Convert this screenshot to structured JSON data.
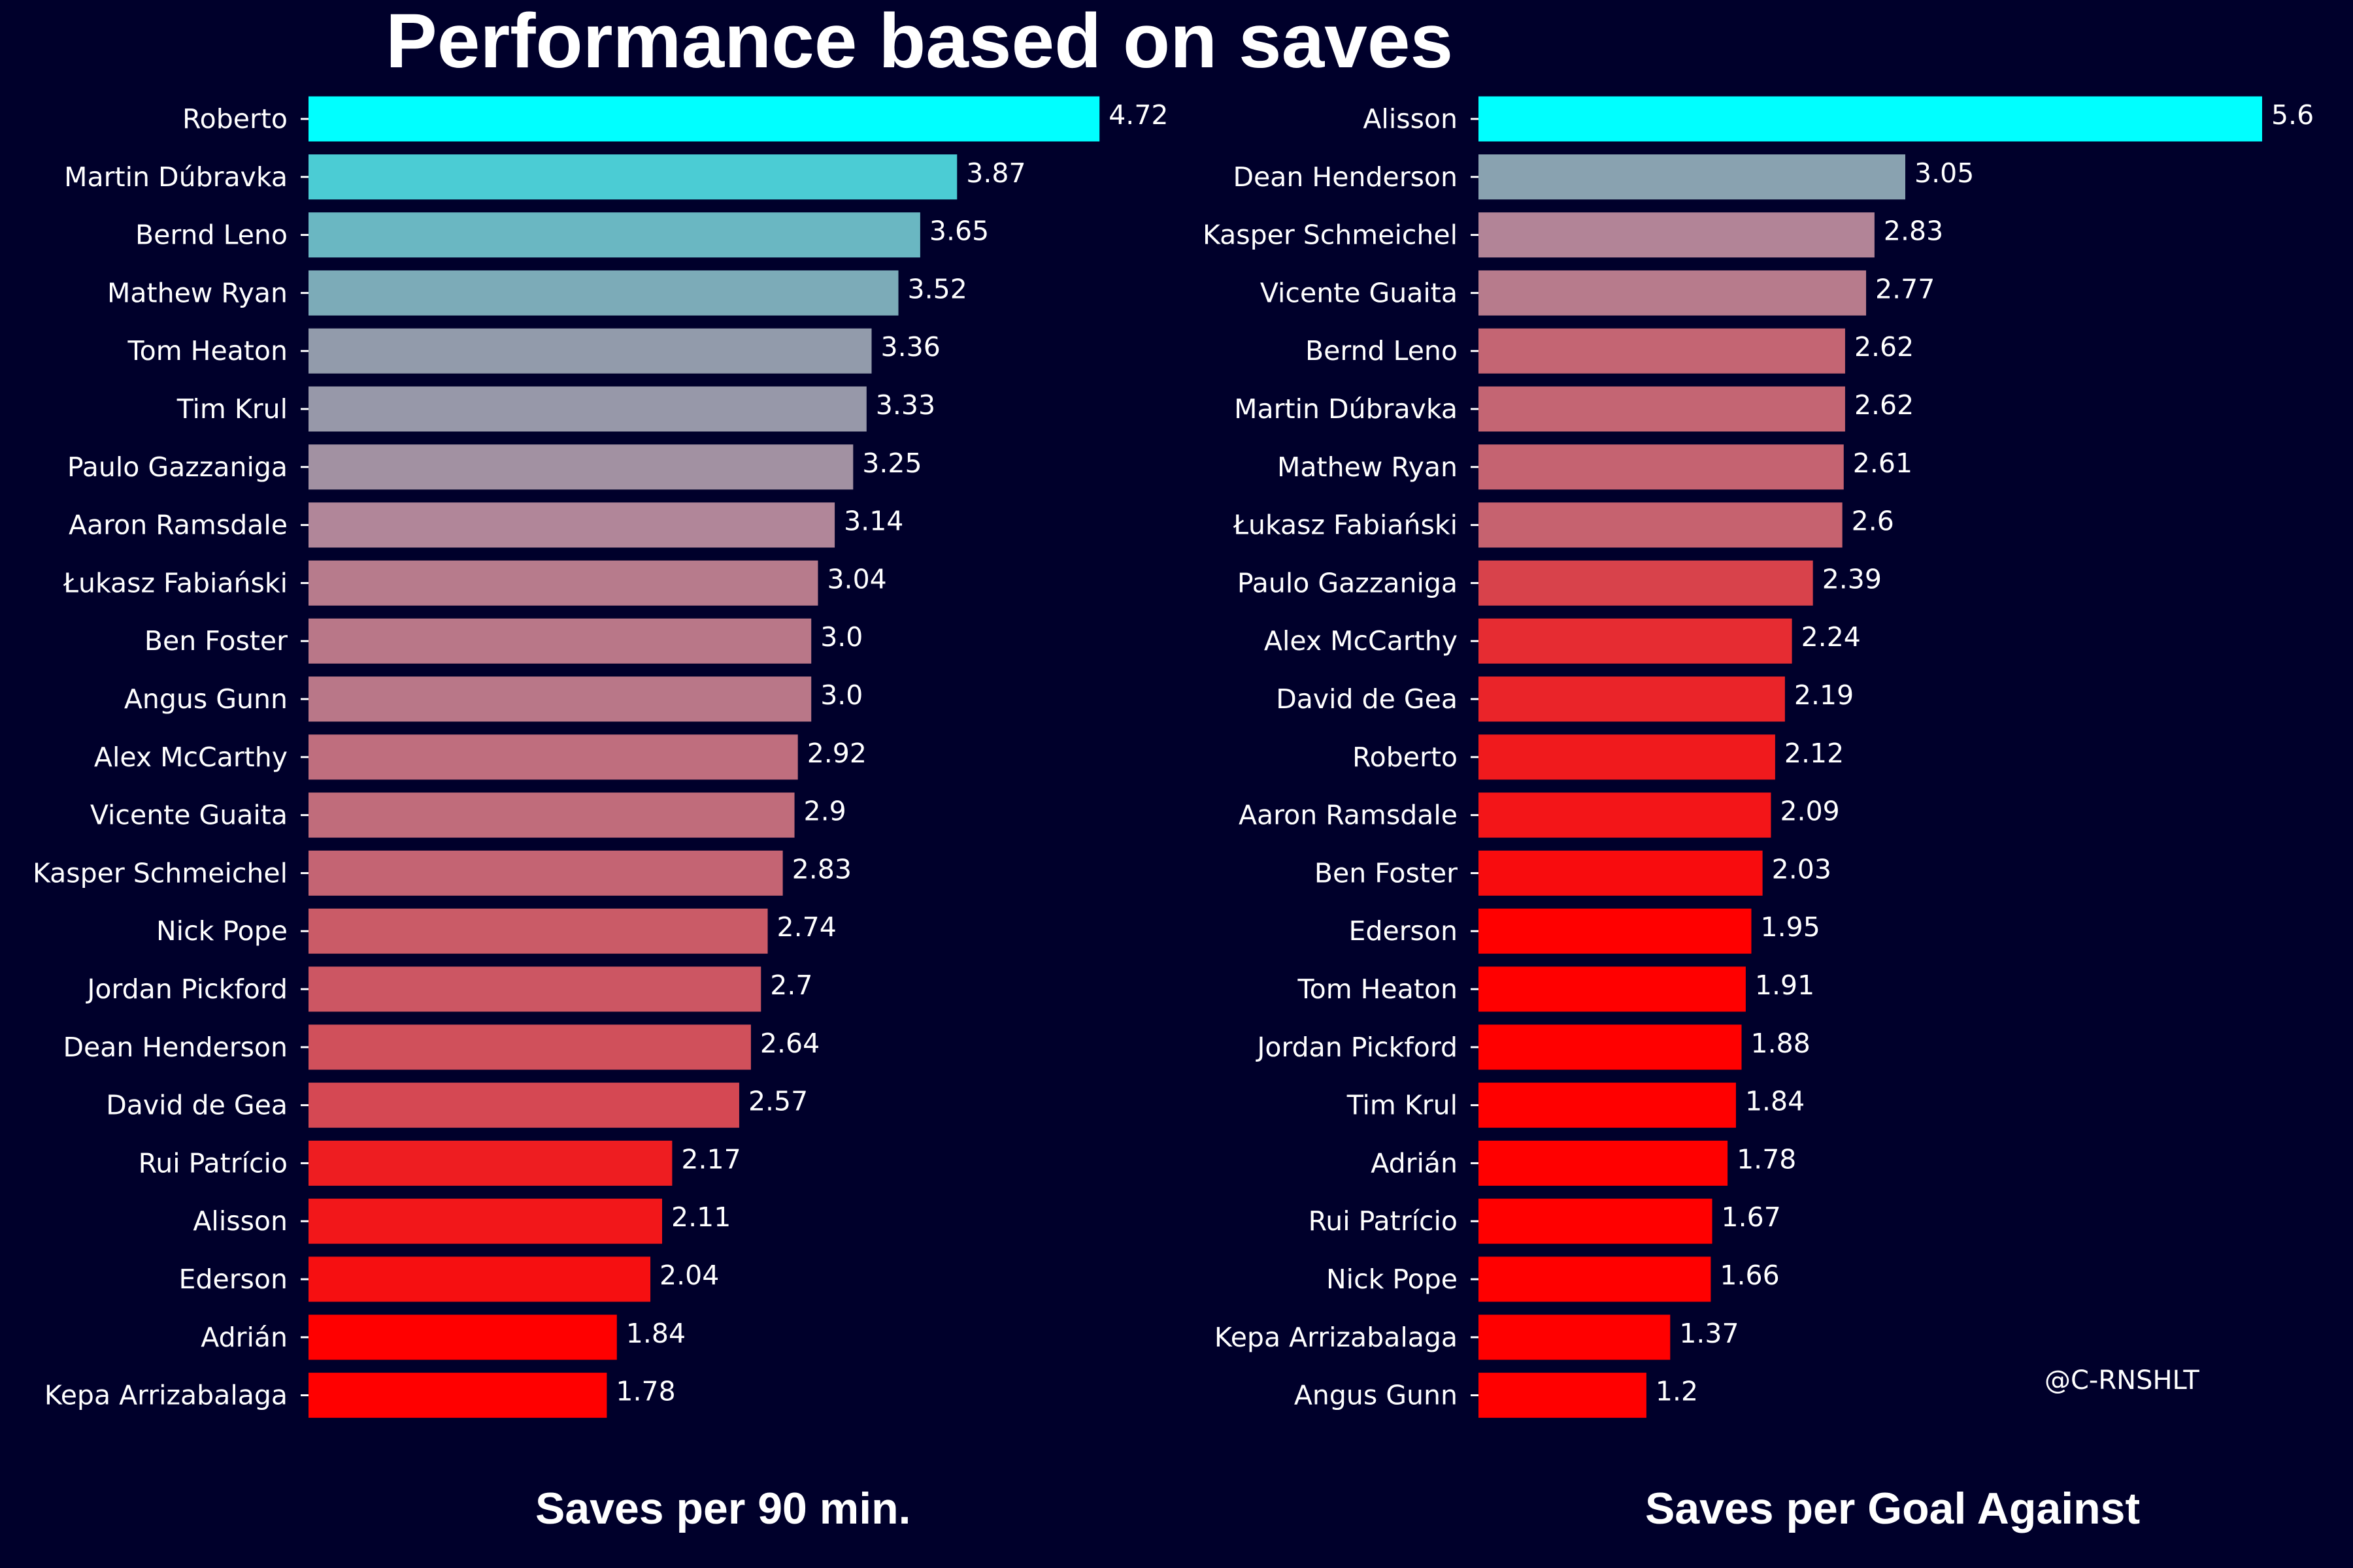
{
  "title": "Performance based on saves",
  "watermark": "@C-RNSHLT",
  "colors": {
    "background": "#00002b",
    "high": "#00ffff",
    "mid": "#b0879a",
    "low": "#ff0000",
    "text": "#ffffff"
  },
  "chart_data": [
    {
      "type": "bar",
      "orientation": "horizontal",
      "xlabel": "Saves per 90 min.",
      "ylabel": "",
      "categories": [
        "Roberto",
        "Martin Dúbravka",
        "Bernd Leno",
        "Mathew Ryan",
        "Tom Heaton",
        "Tim Krul",
        "Paulo Gazzaniga",
        "Aaron Ramsdale",
        "Łukasz Fabiański",
        "Ben Foster",
        "Angus Gunn",
        "Alex McCarthy",
        "Vicente Guaita",
        "Kasper Schmeichel",
        "Nick Pope",
        "Jordan Pickford",
        "Dean Henderson",
        "David de Gea",
        "Rui Patrício",
        "Alisson",
        "Ederson",
        "Adrián",
        "Kepa Arrizabalaga"
      ],
      "values": [
        4.72,
        3.87,
        3.65,
        3.52,
        3.36,
        3.33,
        3.25,
        3.14,
        3.04,
        3.0,
        3.0,
        2.92,
        2.9,
        2.83,
        2.74,
        2.7,
        2.64,
        2.57,
        2.17,
        2.11,
        2.04,
        1.84,
        1.78
      ],
      "value_labels": [
        "4.72",
        "3.87",
        "3.65",
        "3.52",
        "3.36",
        "3.33",
        "3.25",
        "3.14",
        "3.04",
        "3.0",
        "3.0",
        "2.92",
        "2.9",
        "2.83",
        "2.74",
        "2.7",
        "2.64",
        "2.57",
        "2.17",
        "2.11",
        "2.04",
        "1.84",
        "1.78"
      ],
      "xlim": [
        0,
        5.0
      ],
      "grid": false,
      "legend": "none"
    },
    {
      "type": "bar",
      "orientation": "horizontal",
      "xlabel": "Saves per Goal Against",
      "ylabel": "",
      "categories": [
        "Alisson",
        "Dean Henderson",
        "Kasper Schmeichel",
        "Vicente Guaita",
        "Bernd Leno",
        "Martin Dúbravka",
        "Mathew Ryan",
        "Łukasz Fabiański",
        "Paulo Gazzaniga",
        "Alex McCarthy",
        "David de Gea",
        "Roberto",
        "Aaron Ramsdale",
        "Ben Foster",
        "Ederson",
        "Tom Heaton",
        "Jordan Pickford",
        "Tim Krul",
        "Adrián",
        "Rui Patrício",
        "Nick Pope",
        "Kepa Arrizabalaga",
        "Angus Gunn"
      ],
      "values": [
        5.6,
        3.05,
        2.83,
        2.77,
        2.62,
        2.62,
        2.61,
        2.6,
        2.39,
        2.24,
        2.19,
        2.12,
        2.09,
        2.03,
        1.95,
        1.91,
        1.88,
        1.84,
        1.78,
        1.67,
        1.66,
        1.37,
        1.2
      ],
      "value_labels": [
        "5.6",
        "3.05",
        "2.83",
        "2.77",
        "2.62",
        "2.62",
        "2.61",
        "2.6",
        "2.39",
        "2.24",
        "2.19",
        "2.12",
        "2.09",
        "2.03",
        "1.95",
        "1.91",
        "1.88",
        "1.84",
        "1.78",
        "1.67",
        "1.66",
        "1.37",
        "1.2"
      ],
      "xlim": [
        0,
        6.0
      ],
      "grid": false,
      "legend": "none"
    }
  ]
}
